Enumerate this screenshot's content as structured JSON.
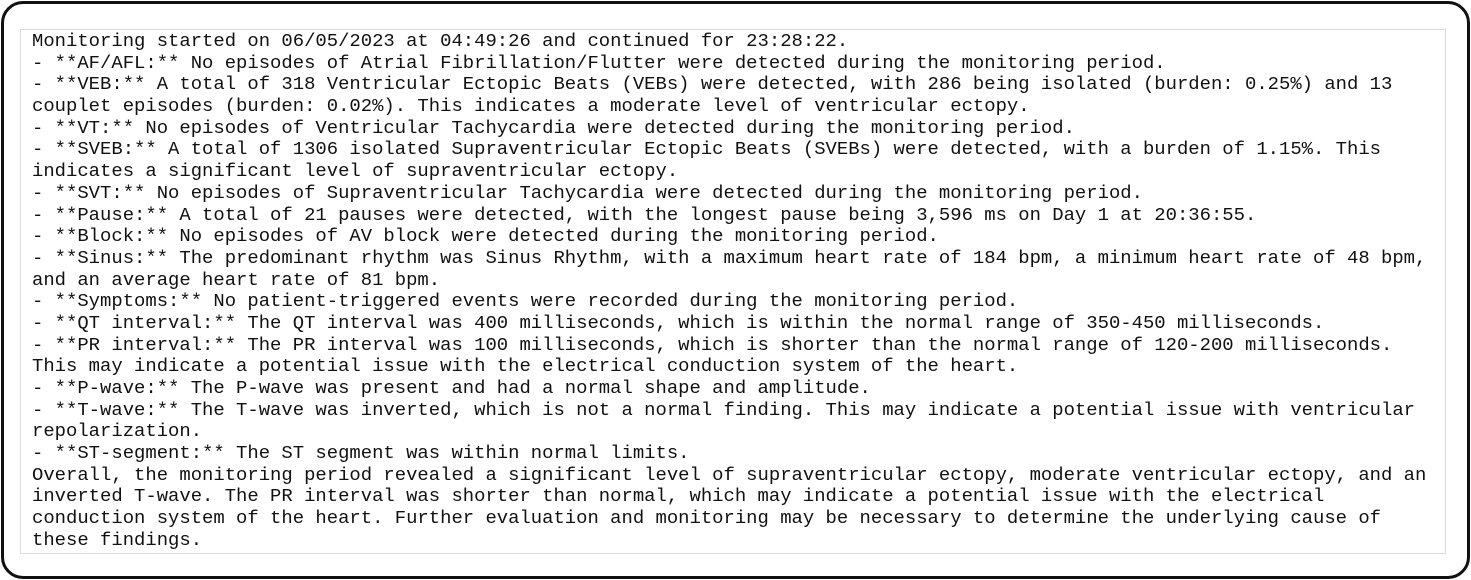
{
  "document": {
    "lines": [
      "Monitoring started on 06/05/2023 at 04:49:26 and continued for 23:28:22.",
      "- **AF/AFL:** No episodes of Atrial Fibrillation/Flutter were detected during the monitoring period.",
      "- **VEB:** A total of 318 Ventricular Ectopic Beats (VEBs) were detected, with 286 being isolated (burden: 0.25%) and 13",
      "couplet episodes (burden: 0.02%). This indicates a moderate level of ventricular ectopy.",
      "- **VT:** No episodes of Ventricular Tachycardia were detected during the monitoring period.",
      "- **SVEB:** A total of 1306 isolated Supraventricular Ectopic Beats (SVEBs) were detected, with a burden of 1.15%. This",
      "indicates a significant level of supraventricular ectopy.",
      "- **SVT:** No episodes of Supraventricular Tachycardia were detected during the monitoring period.",
      "- **Pause:** A total of 21 pauses were detected, with the longest pause being 3,596 ms on Day 1 at 20:36:55.",
      "- **Block:** No episodes of AV block were detected during the monitoring period.",
      "- **Sinus:** The predominant rhythm was Sinus Rhythm, with a maximum heart rate of 184 bpm, a minimum heart rate of 48 bpm,",
      "and an average heart rate of 81 bpm.",
      "- **Symptoms:** No patient-triggered events were recorded during the monitoring period.",
      "- **QT interval:** The QT interval was 400 milliseconds, which is within the normal range of 350-450 milliseconds.",
      "- **PR interval:** The PR interval was 100 milliseconds, which is shorter than the normal range of 120-200 milliseconds.",
      "This may indicate a potential issue with the electrical conduction system of the heart.",
      "- **P-wave:** The P-wave was present and had a normal shape and amplitude.",
      "- **T-wave:** The T-wave was inverted, which is not a normal finding. This may indicate a potential issue with ventricular",
      "repolarization.",
      "- **ST-segment:** The ST segment was within normal limits.",
      "Overall, the monitoring period revealed a significant level of supraventricular ectopy, moderate ventricular ectopy, and an",
      "inverted T-wave. The PR interval was shorter than normal, which may indicate a potential issue with the electrical",
      "conduction system of the heart. Further evaluation and monitoring may be necessary to determine the underlying cause of",
      "these findings."
    ]
  }
}
